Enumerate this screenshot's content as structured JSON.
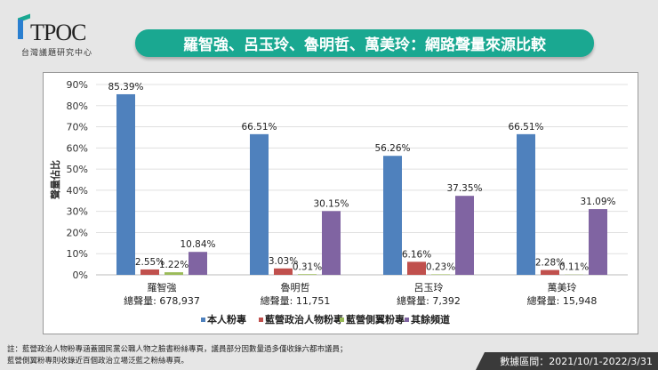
{
  "logo": {
    "text": "TPOC",
    "subtitle": "台灣議題研究中心"
  },
  "title": "羅智強、呂玉玲、魯明哲、萬美玲：網路聲量來源比較",
  "chart_data": {
    "type": "bar",
    "ylabel": "聲量佔比",
    "ylim": [
      0,
      90
    ],
    "yticks": [
      "0%",
      "10%",
      "20%",
      "30%",
      "40%",
      "50%",
      "60%",
      "70%",
      "80%",
      "90%"
    ],
    "grid": true,
    "legend_position": "bottom",
    "categories": [
      "羅智強",
      "魯明哲",
      "呂玉玲",
      "萬美玲"
    ],
    "category_totals": [
      "總聲量: 678,937",
      "總聲量: 11,751",
      "總聲量: 7,392",
      "總聲量: 15,948"
    ],
    "series": [
      {
        "name": "本人粉專",
        "color": "#4f81bd",
        "values": [
          85.39,
          66.51,
          56.26,
          66.51
        ],
        "labels": [
          "85.39%",
          "66.51%",
          "56.26%",
          "66.51%"
        ]
      },
      {
        "name": "藍營政治人物粉專",
        "color": "#c0504d",
        "values": [
          2.55,
          3.03,
          6.16,
          2.28
        ],
        "labels": [
          "2.55%",
          "3.03%",
          "6.16%",
          "2.28%"
        ]
      },
      {
        "name": "藍營側翼粉專",
        "color": "#9bbb59",
        "values": [
          1.22,
          0.31,
          0.23,
          0.11
        ],
        "labels": [
          "1.22%",
          "0.31%",
          "0.23%",
          "0.11%"
        ]
      },
      {
        "name": "其餘頻道",
        "color": "#8064a2",
        "values": [
          10.84,
          30.15,
          37.35,
          31.09
        ],
        "labels": [
          "10.84%",
          "30.15%",
          "37.35%",
          "31.09%"
        ]
      }
    ]
  },
  "note": [
    "註：藍營政治人物粉專涵蓋國民黨公職人物之臉書粉絲專頁，議員部分因數量過多僅收錄六都市議員；",
    "藍營側翼粉專則收錄近百個政治立場泛藍之粉絲專頁。"
  ],
  "period": "數據區間：2021/10/1-2022/3/31"
}
